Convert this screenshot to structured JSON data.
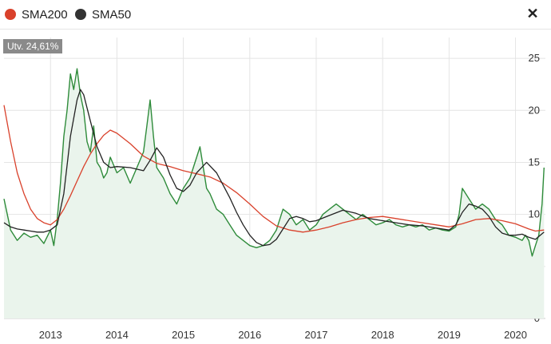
{
  "legend": {
    "sma200": {
      "label": "SMA200",
      "color": "#d9412b"
    },
    "sma50": {
      "label": "SMA50",
      "color": "#333333"
    }
  },
  "badge": {
    "text": "Utv. 24,61%"
  },
  "close_icon": "close-icon",
  "chart_data": {
    "type": "line",
    "title": "",
    "xlabel": "",
    "ylabel": "",
    "xlim": [
      2012.3,
      2020.45
    ],
    "ylim": [
      0,
      27
    ],
    "x_ticks": [
      "2013",
      "2014",
      "2015",
      "2016",
      "2017",
      "2018",
      "2019",
      "2020"
    ],
    "y_ticks": [
      0,
      5,
      10,
      15,
      20,
      25
    ],
    "grid": true,
    "series": [
      {
        "name": "",
        "color": "#2e8b3a",
        "fill": "#eaf4ec",
        "x": [
          2012.3,
          2012.4,
          2012.5,
          2012.6,
          2012.7,
          2012.8,
          2012.9,
          2013.0,
          2013.05,
          2013.1,
          2013.15,
          2013.2,
          2013.25,
          2013.3,
          2013.35,
          2013.4,
          2013.45,
          2013.5,
          2013.55,
          2013.6,
          2013.65,
          2013.7,
          2013.75,
          2013.8,
          2013.85,
          2013.9,
          2014.0,
          2014.1,
          2014.2,
          2014.3,
          2014.4,
          2014.45,
          2014.5,
          2014.55,
          2014.6,
          2014.7,
          2014.8,
          2014.9,
          2015.0,
          2015.1,
          2015.2,
          2015.25,
          2015.3,
          2015.35,
          2015.4,
          2015.5,
          2015.6,
          2015.7,
          2015.8,
          2015.9,
          2016.0,
          2016.1,
          2016.2,
          2016.3,
          2016.4,
          2016.5,
          2016.6,
          2016.7,
          2016.8,
          2016.9,
          2017.0,
          2017.1,
          2017.2,
          2017.3,
          2017.4,
          2017.5,
          2017.6,
          2017.7,
          2017.8,
          2017.9,
          2018.0,
          2018.1,
          2018.2,
          2018.3,
          2018.4,
          2018.5,
          2018.6,
          2018.7,
          2018.8,
          2018.9,
          2019.0,
          2019.05,
          2019.1,
          2019.15,
          2019.2,
          2019.3,
          2019.4,
          2019.5,
          2019.6,
          2019.7,
          2019.8,
          2019.9,
          2020.0,
          2020.1,
          2020.15,
          2020.2,
          2020.25,
          2020.3,
          2020.35,
          2020.4,
          2020.43
        ],
        "y": [
          11.5,
          8.5,
          7.5,
          8.2,
          7.8,
          8.0,
          7.2,
          8.5,
          7.0,
          9.5,
          13.0,
          17.5,
          20.0,
          23.5,
          22.0,
          24.0,
          21.5,
          20.0,
          17.0,
          16.0,
          18.5,
          15.0,
          14.5,
          13.5,
          14.0,
          15.5,
          14.0,
          14.5,
          13.0,
          14.5,
          16.0,
          18.5,
          21.0,
          17.5,
          14.5,
          13.5,
          12.0,
          11.0,
          12.5,
          13.5,
          15.5,
          16.5,
          14.5,
          12.5,
          12.0,
          10.5,
          10.0,
          9.0,
          8.0,
          7.5,
          7.0,
          6.8,
          7.0,
          7.5,
          8.5,
          10.5,
          10.0,
          9.0,
          9.5,
          8.5,
          9.0,
          10.0,
          10.5,
          11.0,
          10.5,
          10.0,
          9.5,
          10.0,
          9.5,
          9.0,
          9.2,
          9.5,
          9.0,
          8.8,
          9.0,
          8.8,
          9.0,
          8.5,
          8.7,
          8.5,
          8.4,
          8.6,
          8.8,
          10.0,
          12.5,
          11.5,
          10.5,
          11.0,
          10.5,
          9.5,
          9.0,
          8.0,
          7.8,
          7.5,
          8.0,
          7.5,
          6.0,
          7.0,
          8.0,
          11.0,
          14.5
        ]
      },
      {
        "name": "SMA200",
        "color": "#d9412b",
        "x": [
          2012.3,
          2012.4,
          2012.5,
          2012.6,
          2012.7,
          2012.8,
          2012.9,
          2013.0,
          2013.1,
          2013.2,
          2013.3,
          2013.4,
          2013.5,
          2013.6,
          2013.7,
          2013.8,
          2013.9,
          2014.0,
          2014.2,
          2014.4,
          2014.6,
          2014.8,
          2015.0,
          2015.2,
          2015.4,
          2015.6,
          2015.8,
          2016.0,
          2016.2,
          2016.4,
          2016.6,
          2016.8,
          2017.0,
          2017.2,
          2017.4,
          2017.6,
          2017.8,
          2018.0,
          2018.2,
          2018.4,
          2018.6,
          2018.8,
          2019.0,
          2019.2,
          2019.4,
          2019.6,
          2019.8,
          2020.0,
          2020.2,
          2020.3,
          2020.43
        ],
        "y": [
          20.5,
          17.0,
          14.0,
          12.0,
          10.5,
          9.6,
          9.2,
          9.0,
          9.5,
          10.5,
          11.8,
          13.2,
          14.6,
          15.8,
          16.8,
          17.6,
          18.1,
          17.8,
          16.8,
          15.6,
          14.9,
          14.6,
          14.2,
          13.9,
          13.6,
          13.0,
          12.1,
          11.0,
          9.8,
          8.9,
          8.5,
          8.3,
          8.5,
          8.8,
          9.2,
          9.5,
          9.7,
          9.8,
          9.6,
          9.4,
          9.2,
          9.0,
          8.8,
          9.1,
          9.5,
          9.6,
          9.4,
          9.1,
          8.6,
          8.4,
          8.5
        ]
      },
      {
        "name": "SMA50",
        "color": "#222222",
        "x": [
          2012.3,
          2012.4,
          2012.5,
          2012.6,
          2012.7,
          2012.8,
          2012.9,
          2013.0,
          2013.1,
          2013.2,
          2013.3,
          2013.4,
          2013.45,
          2013.5,
          2013.6,
          2013.7,
          2013.8,
          2013.9,
          2014.0,
          2014.2,
          2014.4,
          2014.5,
          2014.6,
          2014.7,
          2014.8,
          2014.9,
          2015.0,
          2015.1,
          2015.2,
          2015.35,
          2015.5,
          2015.6,
          2015.7,
          2015.8,
          2015.9,
          2016.0,
          2016.1,
          2016.2,
          2016.3,
          2016.4,
          2016.5,
          2016.6,
          2016.7,
          2016.8,
          2016.9,
          2017.0,
          2017.2,
          2017.4,
          2017.6,
          2017.8,
          2018.0,
          2018.2,
          2018.4,
          2018.6,
          2018.8,
          2019.0,
          2019.1,
          2019.2,
          2019.3,
          2019.4,
          2019.5,
          2019.6,
          2019.7,
          2019.8,
          2019.9,
          2020.0,
          2020.1,
          2020.2,
          2020.3,
          2020.43
        ],
        "y": [
          9.2,
          8.8,
          8.6,
          8.5,
          8.4,
          8.3,
          8.3,
          8.5,
          9.0,
          12.0,
          17.5,
          21.0,
          22.0,
          21.5,
          19.0,
          16.5,
          15.0,
          14.5,
          14.6,
          14.5,
          14.2,
          15.2,
          16.4,
          15.5,
          13.8,
          12.5,
          12.2,
          12.8,
          14.0,
          15.0,
          14.0,
          12.8,
          11.6,
          10.2,
          9.0,
          8.0,
          7.3,
          7.0,
          7.1,
          7.6,
          8.6,
          9.6,
          9.8,
          9.6,
          9.3,
          9.4,
          9.9,
          10.4,
          10.1,
          9.6,
          9.4,
          9.2,
          9.0,
          8.9,
          8.7,
          8.5,
          9.0,
          10.2,
          11.0,
          10.8,
          10.5,
          9.8,
          8.8,
          8.2,
          8.0,
          8.0,
          8.1,
          7.8,
          7.6,
          8.3
        ]
      }
    ]
  }
}
